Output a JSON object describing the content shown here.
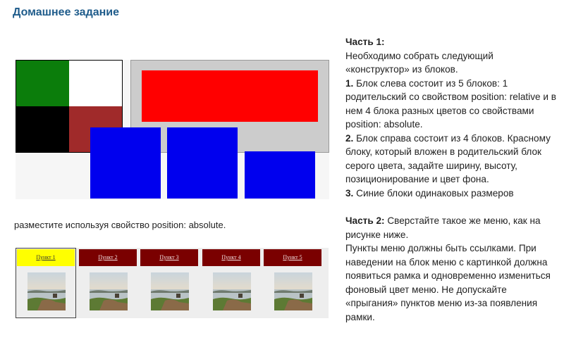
{
  "page": {
    "title": "Домашнее задание"
  },
  "figure1": {
    "colors": {
      "green": "#0b7d0b",
      "white": "#ffffff",
      "black": "#000000",
      "brown": "#a02a2a",
      "grey": "#cccccc",
      "red": "#ff0000",
      "blue": "#0000ee"
    },
    "caption": "разместите используя свойство  position: absolute."
  },
  "menu": {
    "items": [
      {
        "label": "Пункт 1",
        "active": true
      },
      {
        "label": "Пункт 2",
        "active": false
      },
      {
        "label": "Пункт 3",
        "active": false
      },
      {
        "label": "Пункт 4",
        "active": false
      },
      {
        "label": "Пункт 5",
        "active": false
      }
    ],
    "colors": {
      "item_bg": "#7a0000",
      "active_bg": "#ffff00"
    }
  },
  "text": {
    "part1_heading": "Часть 1:",
    "part1_intro": "Необходимо собрать следующий «конструктор» из блоков.",
    "item1_num": "1.",
    "item1_text": " Блок слева состоит из 5 блоков: 1 родительский со свойством  position: relative и в нем 4 блока разных цветов со свойствами  position: absolute.",
    "item2_num": "2.",
    "item2_text": " Блок справа состоит из 4 блоков. Красному блоку, который вложен в родительский блок серого цвета, задайте ширину, высоту, позиционирование и цвет фона.",
    "item3_num": "3.",
    "item3_text": " Синие блоки одинаковых размеров",
    "part2_heading": "Часть 2:",
    "part2_text": " Сверстайте такое же меню, как на рисунке ниже.",
    "part2_desc": "Пункты меню должны быть ссылками. При наведении на блок меню с  картинкой должна появиться рамка и одновременно измениться  фоновый цвет меню. Не допускайте «прыгания» пунктов меню из-за  появления рамки."
  }
}
